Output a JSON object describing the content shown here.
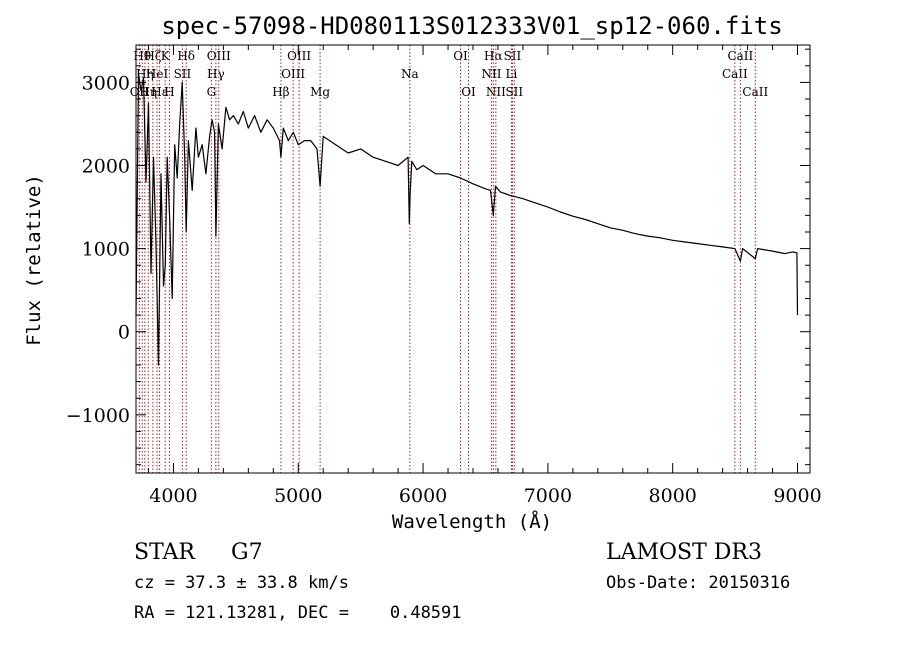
{
  "chart_data": {
    "type": "line",
    "title": "spec-57098-HD080113S012333V01_sp12-060.fits",
    "xlabel": "Wavelength (Å)",
    "ylabel": "Flux (relative)",
    "xlim": [
      3700,
      9100
    ],
    "ylim": [
      -1700,
      3450
    ],
    "xticks": [
      4000,
      5000,
      6000,
      7000,
      8000,
      9000
    ],
    "yticks": [
      -1000,
      0,
      1000,
      2000,
      3000
    ],
    "grid": false,
    "series": [
      {
        "name": "spectrum",
        "x": [
          3700,
          3720,
          3740,
          3760,
          3780,
          3800,
          3820,
          3840,
          3860,
          3880,
          3900,
          3920,
          3935,
          3950,
          3970,
          3990,
          4010,
          4030,
          4050,
          4070,
          4090,
          4102,
          4120,
          4150,
          4180,
          4200,
          4230,
          4260,
          4290,
          4310,
          4330,
          4340,
          4360,
          4390,
          4420,
          4450,
          4480,
          4520,
          4560,
          4600,
          4650,
          4700,
          4750,
          4800,
          4850,
          4861,
          4880,
          4920,
          4960,
          5000,
          5050,
          5100,
          5150,
          5175,
          5200,
          5300,
          5400,
          5500,
          5600,
          5700,
          5800,
          5880,
          5890,
          5896,
          5910,
          5950,
          6000,
          6100,
          6200,
          6300,
          6400,
          6500,
          6540,
          6563,
          6580,
          6620,
          6700,
          6800,
          6900,
          7000,
          7100,
          7200,
          7300,
          7400,
          7500,
          7600,
          7700,
          7800,
          7900,
          8000,
          8100,
          8200,
          8300,
          8400,
          8498,
          8542,
          8560,
          8662,
          8680,
          8800,
          8900,
          8960,
          8995,
          9000
        ],
        "values": [
          200,
          3100,
          2900,
          3050,
          1800,
          2750,
          700,
          2100,
          1050,
          -400,
          1900,
          550,
          800,
          2100,
          1350,
          400,
          2250,
          1850,
          2500,
          3000,
          2100,
          1200,
          2300,
          1700,
          2450,
          2100,
          2250,
          1900,
          2350,
          2550,
          2400,
          1150,
          2500,
          2200,
          2700,
          2550,
          2600,
          2500,
          2650,
          2450,
          2600,
          2400,
          2550,
          2450,
          2300,
          2100,
          2450,
          2300,
          2400,
          2250,
          2300,
          2300,
          2200,
          1750,
          2350,
          2250,
          2150,
          2200,
          2100,
          2050,
          2000,
          2100,
          1300,
          1650,
          2050,
          1950,
          2000,
          1900,
          1900,
          1850,
          1780,
          1720,
          1700,
          1400,
          1750,
          1680,
          1640,
          1600,
          1550,
          1500,
          1440,
          1390,
          1350,
          1300,
          1250,
          1220,
          1180,
          1150,
          1130,
          1100,
          1080,
          1060,
          1040,
          1020,
          1000,
          850,
          1000,
          880,
          1000,
          970,
          940,
          960,
          950,
          200
        ]
      }
    ],
    "lines": [
      {
        "x": 3727,
        "label": "OII",
        "row": 2
      },
      {
        "x": 3750,
        "label": "Hθ",
        "row": 0
      },
      {
        "x": 3771,
        "label": "Hη",
        "row": 1
      },
      {
        "x": 3798,
        "label": "Hη",
        "row": 2
      },
      {
        "x": 3835,
        "label": "Hζ",
        "row": 0
      },
      {
        "x": 3869,
        "label": "HeI",
        "row": 1
      },
      {
        "x": 3889,
        "label": "Hε",
        "row": 2
      },
      {
        "x": 3934,
        "label": "K",
        "row": 0
      },
      {
        "x": 3968,
        "label": "H",
        "row": 2
      },
      {
        "x": 4072,
        "label": "SII",
        "row": 1
      },
      {
        "x": 4102,
        "label": "Hδ",
        "row": 0
      },
      {
        "x": 4304,
        "label": "G",
        "row": 2
      },
      {
        "x": 4340,
        "label": "Hγ",
        "row": 1
      },
      {
        "x": 4363,
        "label": "OIII",
        "row": 0
      },
      {
        "x": 4861,
        "label": "Hβ",
        "row": 2
      },
      {
        "x": 4959,
        "label": "OIII",
        "row": 1
      },
      {
        "x": 5007,
        "label": "OIII",
        "row": 0
      },
      {
        "x": 5175,
        "label": "Mg",
        "row": 2
      },
      {
        "x": 5894,
        "label": "Na",
        "row": 1
      },
      {
        "x": 6300,
        "label": "OI",
        "row": 0
      },
      {
        "x": 6364,
        "label": "OI",
        "row": 2
      },
      {
        "x": 6548,
        "label": "NII",
        "row": 1
      },
      {
        "x": 6563,
        "label": "Hα",
        "row": 0
      },
      {
        "x": 6583,
        "label": "NII",
        "row": 2
      },
      {
        "x": 6708,
        "label": "Li",
        "row": 1
      },
      {
        "x": 6716,
        "label": "SII",
        "row": 0
      },
      {
        "x": 6731,
        "label": "SII",
        "row": 2
      },
      {
        "x": 8498,
        "label": "CaII",
        "row": 1
      },
      {
        "x": 8542,
        "label": "CaII",
        "row": 0
      },
      {
        "x": 8662,
        "label": "CaII",
        "row": 2
      }
    ],
    "colors": {
      "spectrum": "#000000",
      "lines": "#b22222"
    }
  },
  "info": {
    "class": "STAR",
    "subclass": "G7",
    "survey": "LAMOST DR3",
    "cz": "cz = 37.3 ± 33.8 km/s",
    "obs_date": "Obs-Date: 20150316",
    "radec": "RA = 121.13281, DEC =    0.48591"
  }
}
